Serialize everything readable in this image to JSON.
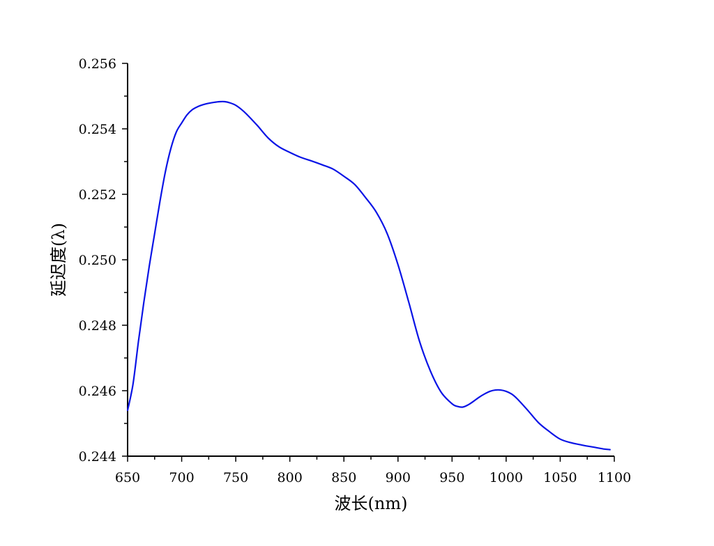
{
  "chart_data": {
    "type": "line",
    "title": "",
    "xlabel": "波长(nm)",
    "ylabel": "延迟度(λ)",
    "xlim": [
      650,
      1100
    ],
    "ylim": [
      0.244,
      0.256
    ],
    "x_ticks": [
      650,
      700,
      750,
      800,
      850,
      900,
      950,
      1000,
      1050,
      1100
    ],
    "y_ticks": [
      0.244,
      0.246,
      0.248,
      0.25,
      0.252,
      0.254,
      0.256
    ],
    "x_tick_labels": [
      "650",
      "700",
      "750",
      "800",
      "850",
      "900",
      "950",
      "1000",
      "1050",
      "1100"
    ],
    "y_tick_labels": [
      "0.244",
      "0.246",
      "0.248",
      "0.250",
      "0.252",
      "0.254",
      "0.256"
    ],
    "grid": false,
    "legend": "none",
    "color": "#0a14e6",
    "series": [
      {
        "x": [
          650,
          655,
          660,
          665,
          670,
          675,
          680,
          685,
          690,
          695,
          700,
          705,
          710,
          715,
          720,
          725,
          730,
          735,
          740,
          745,
          750,
          755,
          760,
          770,
          780,
          790,
          800,
          810,
          820,
          830,
          840,
          850,
          860,
          870,
          880,
          890,
          900,
          910,
          920,
          930,
          940,
          950,
          955,
          960,
          965,
          970,
          975,
          980,
          985,
          990,
          995,
          1000,
          1005,
          1010,
          1020,
          1030,
          1040,
          1050,
          1060,
          1070,
          1080,
          1090,
          1096
        ],
        "values": [
          0.2454,
          0.2462,
          0.2475,
          0.2487,
          0.2498,
          0.2508,
          0.2518,
          0.2527,
          0.2534,
          0.2539,
          0.25418,
          0.25443,
          0.25459,
          0.25468,
          0.25474,
          0.25478,
          0.25481,
          0.25483,
          0.25483,
          0.25479,
          0.25472,
          0.2546,
          0.25445,
          0.2541,
          0.25372,
          0.25345,
          0.25328,
          0.25313,
          0.25302,
          0.2529,
          0.25277,
          0.25255,
          0.2523,
          0.2519,
          0.25145,
          0.2508,
          0.24985,
          0.2487,
          0.2475,
          0.2466,
          0.24595,
          0.2456,
          0.24552,
          0.2455,
          0.24557,
          0.24568,
          0.2458,
          0.2459,
          0.24598,
          0.24602,
          0.24602,
          0.24598,
          0.2459,
          0.24576,
          0.2454,
          0.24502,
          0.24475,
          0.24452,
          0.24441,
          0.24434,
          0.24428,
          0.24422,
          0.2442
        ]
      }
    ]
  }
}
